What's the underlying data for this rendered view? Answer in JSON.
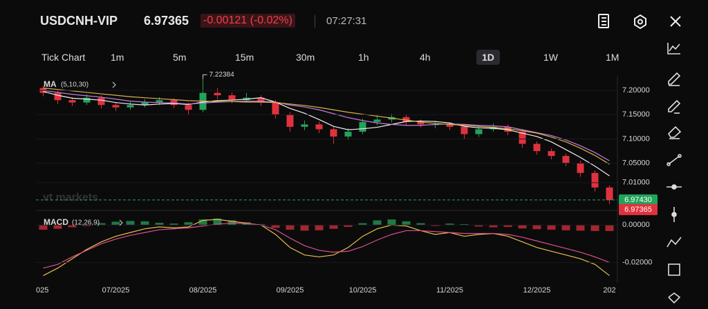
{
  "header": {
    "symbol": "USDCNH-VIP",
    "price": 6.97365,
    "change": "-0.00121 (-0.02%)",
    "time": "07:27:31"
  },
  "timeframes": [
    "Tick Chart",
    "1m",
    "5m",
    "15m",
    "30m",
    "1h",
    "4h",
    "1D",
    "1W",
    "1M"
  ],
  "active_timeframe": "1D",
  "chart_data": [
    {
      "type": "candlestick",
      "indicator": "MA",
      "indicator_params": "(5,10,30)",
      "watermark": "vt markets",
      "up_color": "#22a35a",
      "down_color": "#e0323e",
      "categories": [
        "025",
        null,
        null,
        null,
        null,
        "07/2025",
        null,
        null,
        null,
        null,
        null,
        "08/2025",
        null,
        null,
        null,
        null,
        null,
        "09/2025",
        null,
        null,
        null,
        null,
        "10/2025",
        null,
        null,
        null,
        null,
        null,
        "11/2025",
        null,
        null,
        null,
        null,
        null,
        "12/2025",
        null,
        null,
        null,
        null,
        "202"
      ],
      "open": [
        7.205,
        7.195,
        7.18,
        7.175,
        7.185,
        7.17,
        7.165,
        7.17,
        7.175,
        7.18,
        7.17,
        7.16,
        7.195,
        7.19,
        7.18,
        7.185,
        7.175,
        7.15,
        7.125,
        7.13,
        7.12,
        7.105,
        7.115,
        7.135,
        7.14,
        7.145,
        7.135,
        7.13,
        7.13,
        7.125,
        7.11,
        7.12,
        7.125,
        7.115,
        7.09,
        7.075,
        7.065,
        7.05,
        7.03,
        7.0
      ],
      "high": [
        7.21,
        7.2,
        7.186,
        7.192,
        7.19,
        7.176,
        7.177,
        7.182,
        7.186,
        7.184,
        7.175,
        7.22384,
        7.205,
        7.196,
        7.195,
        7.19,
        7.18,
        7.155,
        7.138,
        7.136,
        7.125,
        7.122,
        7.142,
        7.15,
        7.152,
        7.15,
        7.14,
        7.136,
        7.134,
        7.128,
        7.128,
        7.132,
        7.13,
        7.12,
        7.095,
        7.08,
        7.07,
        7.055,
        7.035,
        7.004
      ],
      "low": [
        7.188,
        7.172,
        7.168,
        7.17,
        7.163,
        7.158,
        7.16,
        7.165,
        7.17,
        7.164,
        7.15,
        7.155,
        7.182,
        7.174,
        7.176,
        7.168,
        7.142,
        7.115,
        7.118,
        7.112,
        7.09,
        7.098,
        7.11,
        7.128,
        7.134,
        7.128,
        7.124,
        7.122,
        7.118,
        7.1,
        7.104,
        7.115,
        7.108,
        7.082,
        7.068,
        7.058,
        7.044,
        7.022,
        6.992,
        6.966
      ],
      "close": [
        7.195,
        7.18,
        7.175,
        7.185,
        7.17,
        7.165,
        7.17,
        7.175,
        7.18,
        7.17,
        7.16,
        7.195,
        7.19,
        7.18,
        7.185,
        7.175,
        7.15,
        7.125,
        7.13,
        7.12,
        7.105,
        7.115,
        7.135,
        7.14,
        7.145,
        7.135,
        7.13,
        7.13,
        7.125,
        7.11,
        7.12,
        7.125,
        7.115,
        7.09,
        7.075,
        7.065,
        7.05,
        7.03,
        7.0,
        6.974
      ],
      "series": [
        {
          "color": "#f2f2f2",
          "values": [
            7.198,
            7.19,
            7.184,
            7.182,
            7.18,
            7.175,
            7.172,
            7.17,
            7.172,
            7.173,
            7.171,
            7.176,
            7.179,
            7.18,
            7.182,
            7.185,
            7.176,
            7.163,
            7.153,
            7.14,
            7.126,
            7.119,
            7.121,
            7.124,
            7.13,
            7.136,
            7.137,
            7.136,
            7.133,
            7.126,
            7.123,
            7.122,
            7.119,
            7.112,
            7.105,
            7.094,
            7.078,
            7.062,
            7.044,
            7.024
          ]
        },
        {
          "color": "#c77dde",
          "values": [
            7.2,
            7.196,
            7.192,
            7.189,
            7.186,
            7.182,
            7.178,
            7.176,
            7.175,
            7.174,
            7.172,
            7.174,
            7.176,
            7.177,
            7.178,
            7.178,
            7.176,
            7.17,
            7.166,
            7.16,
            7.152,
            7.144,
            7.138,
            7.133,
            7.13,
            7.128,
            7.128,
            7.13,
            7.131,
            7.13,
            7.128,
            7.127,
            7.125,
            7.119,
            7.113,
            7.107,
            7.098,
            7.086,
            7.072,
            7.055
          ]
        },
        {
          "color": "#d9b44a",
          "values": [
            7.205,
            7.202,
            7.199,
            7.196,
            7.193,
            7.19,
            7.187,
            7.185,
            7.183,
            7.181,
            7.179,
            7.178,
            7.177,
            7.177,
            7.176,
            7.176,
            7.175,
            7.172,
            7.169,
            7.165,
            7.16,
            7.155,
            7.151,
            7.147,
            7.143,
            7.139,
            7.135,
            7.132,
            7.13,
            7.128,
            7.126,
            7.124,
            7.121,
            7.117,
            7.112,
            7.104,
            7.094,
            7.081,
            7.066,
            7.048
          ]
        }
      ],
      "ylim": [
        6.96,
        7.23
      ],
      "yticks": [
        {
          "value": 7.2,
          "label": "7.20000"
        },
        {
          "value": 7.15,
          "label": "7.15000"
        },
        {
          "value": 7.1,
          "label": "7.10000"
        },
        {
          "value": 7.05,
          "label": "7.05000"
        },
        {
          "value": 7.01,
          "label": "7.01000"
        }
      ],
      "last_price": {
        "value": 6.9743,
        "label": "6.97430"
      }
    },
    {
      "type": "macd",
      "indicator": "MACD",
      "indicator_params": "(12,26,9)",
      "up_color": "#1f7a45",
      "down_color": "#a3262e",
      "histogram": [
        -0.0025,
        -0.002,
        -0.0012,
        -0.0005,
        0.001,
        0.0018,
        0.0022,
        0.002,
        0.0012,
        0.0008,
        0.0015,
        0.003,
        0.0035,
        0.0025,
        0.0015,
        0.0005,
        -0.0015,
        -0.0025,
        -0.003,
        -0.0028,
        -0.002,
        -0.001,
        0.001,
        0.0025,
        0.003,
        0.002,
        0.001,
        -0.0005,
        0.0008,
        0.0005,
        -0.0008,
        -0.0012,
        -0.001,
        -0.0018,
        -0.0022,
        -0.0025,
        -0.0028,
        -0.003,
        -0.0032,
        -0.0032
      ],
      "series": [
        {
          "color": "#e8c04a",
          "values": [
            -0.027,
            -0.023,
            -0.018,
            -0.013,
            -0.009,
            -0.006,
            -0.004,
            -0.002,
            -0.001,
            -0.0015,
            -0.001,
            0.0025,
            0.003,
            0.002,
            0.001,
            0.0,
            -0.005,
            -0.012,
            -0.016,
            -0.017,
            -0.016,
            -0.012,
            -0.006,
            -0.002,
            0.0,
            -0.0005,
            -0.003,
            -0.005,
            -0.004,
            -0.006,
            -0.005,
            -0.0045,
            -0.006,
            -0.009,
            -0.012,
            -0.014,
            -0.016,
            -0.018,
            -0.021,
            -0.027
          ]
        },
        {
          "color": "#e0508a",
          "values": [
            -0.023,
            -0.021,
            -0.017,
            -0.0135,
            -0.01,
            -0.0075,
            -0.0055,
            -0.004,
            -0.0025,
            -0.002,
            -0.0015,
            -0.0005,
            0.0005,
            0.001,
            0.0008,
            0.0,
            -0.0025,
            -0.007,
            -0.011,
            -0.0135,
            -0.0145,
            -0.014,
            -0.0115,
            -0.008,
            -0.005,
            -0.003,
            -0.003,
            -0.0035,
            -0.004,
            -0.0045,
            -0.0045,
            -0.0045,
            -0.005,
            -0.0065,
            -0.0085,
            -0.0105,
            -0.0125,
            -0.0145,
            -0.017,
            -0.02
          ]
        }
      ],
      "ylim": [
        -0.029,
        0.006
      ],
      "yticks": [
        {
          "value": 0,
          "label": "0.00000"
        },
        {
          "value": -0.02,
          "label": "-0.02000"
        }
      ]
    }
  ]
}
